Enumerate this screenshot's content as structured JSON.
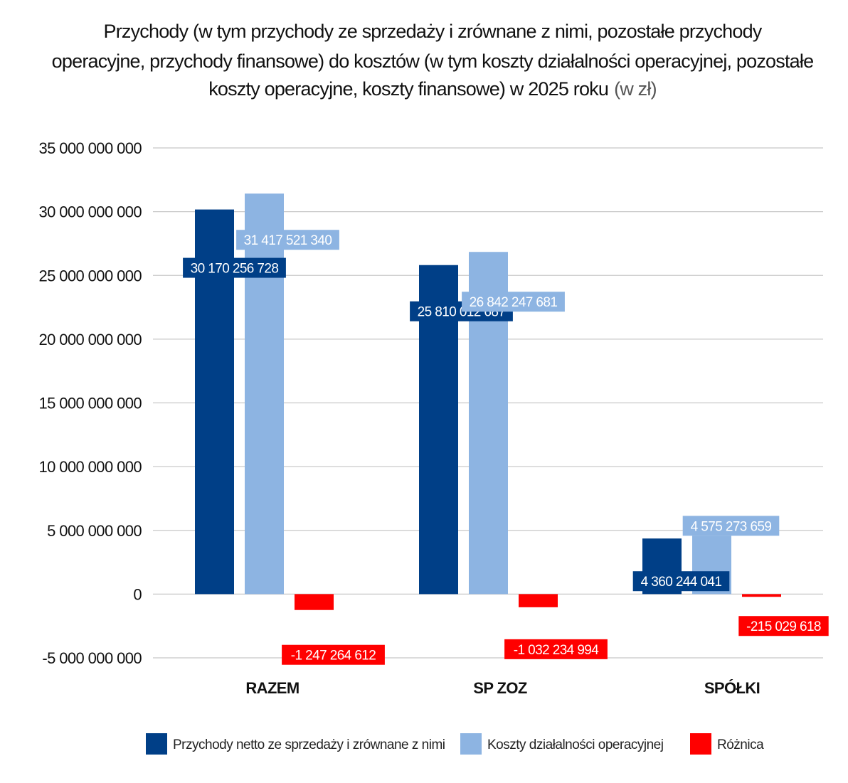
{
  "chart_data": {
    "type": "bar",
    "title_lines": [
      "Przychody (w tym przychody ze sprzedaży i zrównane z nimi, pozostałe przychody",
      "operacyjne, przychody finansowe) do kosztów (w tym koszty działalności operacyjnej, pozostałe",
      "koszty operacyjne, koszty finansowe) w 2025 roku"
    ],
    "title_unit": "(w zł)",
    "categories": [
      "RAZEM",
      "SP ZOZ",
      "SPÓŁKI"
    ],
    "series": [
      {
        "name": "Przychody netto ze sprzedaży i zrównane z nimi",
        "color": "#003f87",
        "values": [
          30170256728,
          25810012687,
          4360244041
        ],
        "labels": [
          "30 170 256 728",
          "25 810 012 687",
          "4 360 244 041"
        ]
      },
      {
        "name": "Koszty działalności operacyjnej",
        "color": "#8db4e2",
        "values": [
          31417521340,
          26842247681,
          4575273659
        ],
        "labels": [
          "31 417 521 340",
          "26 842 247 681",
          "4 575 273 659"
        ]
      },
      {
        "name": "Różnica",
        "color": "#ff0000",
        "values": [
          -1247264612,
          -1032234994,
          -215029618
        ],
        "labels": [
          "-1 247 264 612",
          "-1 032 234 994",
          "-215 029 618"
        ]
      }
    ],
    "ylim": [
      -5000000000,
      35000000000
    ],
    "yticks": [
      -5000000000,
      0,
      5000000000,
      10000000000,
      15000000000,
      20000000000,
      25000000000,
      30000000000,
      35000000000
    ],
    "ytick_labels": [
      "-5 000 000 000",
      "0",
      "5 000 000 000",
      "10 000 000 000",
      "15 000 000 000",
      "20 000 000 000",
      "25 000 000 000",
      "30 000 000 000",
      "35 000 000 000"
    ],
    "grid": true,
    "legend_position": "bottom",
    "xlabel": "",
    "ylabel": ""
  }
}
